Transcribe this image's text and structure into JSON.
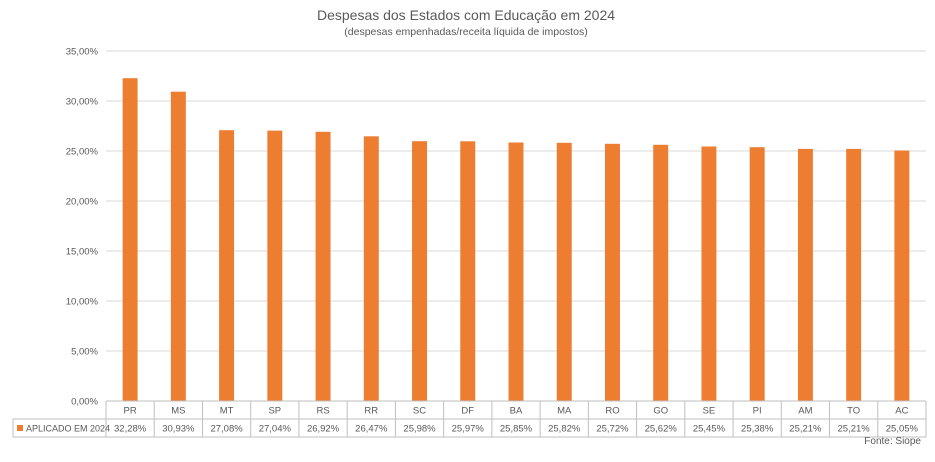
{
  "chart_data": {
    "type": "bar",
    "title": "Despesas dos Estados com Educação em 2024",
    "subtitle": "(despesas empenhadas/receita líquida de impostos)",
    "categories": [
      "PR",
      "MS",
      "MT",
      "SP",
      "RS",
      "RR",
      "SC",
      "DF",
      "BA",
      "MA",
      "RO",
      "GO",
      "SE",
      "PI",
      "AM",
      "TO",
      "AC"
    ],
    "series": [
      {
        "name": "APLICADO EM 2024",
        "values": [
          32.28,
          30.93,
          27.08,
          27.04,
          26.92,
          26.47,
          25.98,
          25.97,
          25.85,
          25.82,
          25.72,
          25.62,
          25.45,
          25.38,
          25.21,
          25.21,
          25.05
        ],
        "labels": [
          "32,28%",
          "30,93%",
          "27,08%",
          "27,04%",
          "26,92%",
          "26,47%",
          "25,98%",
          "25,97%",
          "25,85%",
          "25,82%",
          "25,72%",
          "25,62%",
          "25,45%",
          "25,38%",
          "25,21%",
          "25,21%",
          "25,05%"
        ],
        "color": "#ED7D31"
      }
    ],
    "ylim": [
      0,
      35
    ],
    "yticks": [
      0,
      5,
      10,
      15,
      20,
      25,
      30,
      35
    ],
    "ytick_labels": [
      "0,00%",
      "5,00%",
      "10,00%",
      "15,00%",
      "20,00%",
      "25,00%",
      "30,00%",
      "35,00%"
    ],
    "grid": true,
    "legend": "data-table-left",
    "source": "Fonte: Siope",
    "gridline_color": "#D9D9D9",
    "axis_color": "#BFBFBF",
    "text_color": "#595959"
  }
}
